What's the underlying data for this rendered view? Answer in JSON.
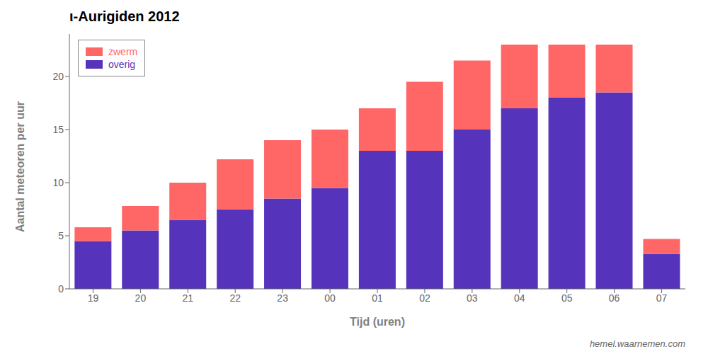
{
  "chart_data": {
    "type": "bar",
    "stacked": true,
    "title": "ι-Aurigiden 2012",
    "x_label": "Tijd (uren)",
    "y_label": "Aantal meteoren per uur",
    "annotations": [
      "hemel.waarnemen.com"
    ],
    "categories": [
      "19",
      "20",
      "21",
      "22",
      "23",
      "00",
      "01",
      "02",
      "03",
      "04",
      "05",
      "06",
      "07"
    ],
    "series": [
      {
        "name": "overig",
        "color": "#5533BB",
        "values": [
          4.5,
          5.5,
          6.5,
          7.5,
          8.5,
          9.5,
          13.0,
          13.0,
          15.0,
          17.0,
          18.0,
          18.5,
          3.3
        ]
      },
      {
        "name": "zwerm",
        "color": "#FF6666",
        "values": [
          1.3,
          2.3,
          3.5,
          4.7,
          5.5,
          5.5,
          4.0,
          6.5,
          6.5,
          6.0,
          5.0,
          4.5,
          1.4
        ]
      }
    ],
    "ylim": [
      0,
      24
    ],
    "yticks": [
      0,
      5,
      10,
      15,
      20
    ],
    "grid": false,
    "legend": "upper left"
  }
}
